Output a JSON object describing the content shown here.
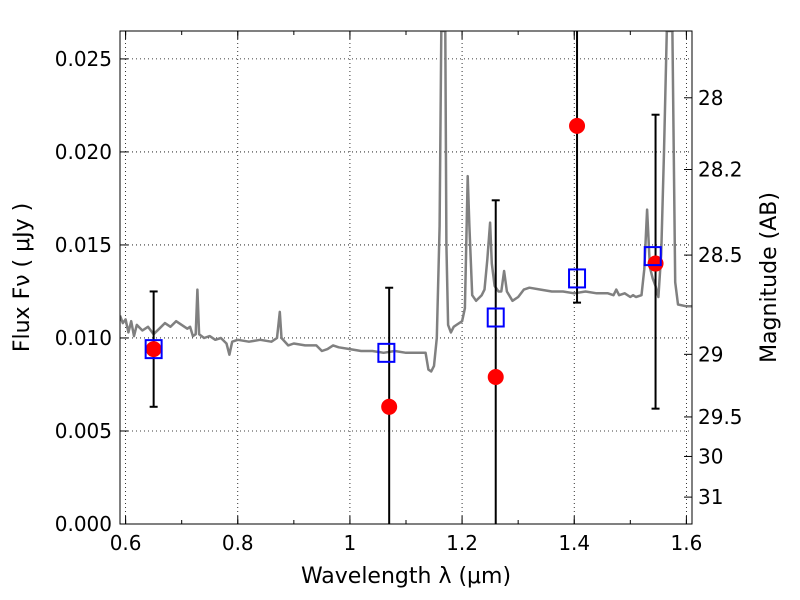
{
  "chart_data": {
    "type": "scatter",
    "xlabel": "Wavelength  λ (μm)",
    "ylabel": "Flux  Fν  ( μJy )",
    "ylabel_right": "Magnitude (AB)",
    "xlim": [
      0.59,
      1.61
    ],
    "ylim": [
      0.0,
      0.0265
    ],
    "grid": true,
    "x_ticks": [
      0.6,
      0.8,
      1.0,
      1.2,
      1.4,
      1.6
    ],
    "x_tick_labels": [
      "0.6",
      "0.8",
      "1",
      "1.2",
      "1.4",
      "1.6"
    ],
    "y_ticks": [
      0.0,
      0.005,
      0.01,
      0.015,
      0.02,
      0.025
    ],
    "y_tick_labels": [
      "0.000",
      "0.005",
      "0.010",
      "0.015",
      "0.020",
      "0.025"
    ],
    "right_ticks": [
      {
        "label": "28",
        "value": 28.0
      },
      {
        "label": "28.2",
        "value": 28.2
      },
      {
        "label": "28.5",
        "value": 28.5
      },
      {
        "label": "29",
        "value": 29.0
      },
      {
        "label": "29.5",
        "value": 29.5
      },
      {
        "label": "30",
        "value": 30.0
      },
      {
        "label": "31",
        "value": 31.0
      }
    ],
    "series": [
      {
        "kind": "model_spectrum",
        "color": "#808080",
        "points": [
          [
            0.59,
            0.0112
          ],
          [
            0.595,
            0.0108
          ],
          [
            0.6,
            0.011
          ],
          [
            0.605,
            0.0103
          ],
          [
            0.61,
            0.0109
          ],
          [
            0.615,
            0.0101
          ],
          [
            0.62,
            0.0107
          ],
          [
            0.63,
            0.0104
          ],
          [
            0.64,
            0.0106
          ],
          [
            0.65,
            0.0102
          ],
          [
            0.66,
            0.0105
          ],
          [
            0.67,
            0.0108
          ],
          [
            0.68,
            0.0106
          ],
          [
            0.69,
            0.0109
          ],
          [
            0.7,
            0.0107
          ],
          [
            0.71,
            0.0105
          ],
          [
            0.715,
            0.0106
          ],
          [
            0.72,
            0.0101
          ],
          [
            0.725,
            0.0102
          ],
          [
            0.728,
            0.0126
          ],
          [
            0.731,
            0.0102
          ],
          [
            0.74,
            0.01
          ],
          [
            0.75,
            0.0101
          ],
          [
            0.76,
            0.0099
          ],
          [
            0.77,
            0.01
          ],
          [
            0.78,
            0.0097
          ],
          [
            0.785,
            0.0091
          ],
          [
            0.79,
            0.0098
          ],
          [
            0.8,
            0.0099
          ],
          [
            0.82,
            0.0098
          ],
          [
            0.84,
            0.0099
          ],
          [
            0.86,
            0.0098
          ],
          [
            0.87,
            0.01
          ],
          [
            0.875,
            0.0114
          ],
          [
            0.878,
            0.01
          ],
          [
            0.89,
            0.0096
          ],
          [
            0.9,
            0.0097
          ],
          [
            0.92,
            0.0096
          ],
          [
            0.94,
            0.0096
          ],
          [
            0.95,
            0.0093
          ],
          [
            0.96,
            0.0094
          ],
          [
            0.97,
            0.0096
          ],
          [
            0.98,
            0.0095
          ],
          [
            1.0,
            0.0094
          ],
          [
            1.02,
            0.0093
          ],
          [
            1.04,
            0.0093
          ],
          [
            1.06,
            0.0092
          ],
          [
            1.08,
            0.0093
          ],
          [
            1.1,
            0.0092
          ],
          [
            1.12,
            0.0092
          ],
          [
            1.135,
            0.0092
          ],
          [
            1.14,
            0.0083
          ],
          [
            1.145,
            0.0082
          ],
          [
            1.15,
            0.0085
          ],
          [
            1.155,
            0.01
          ],
          [
            1.16,
            0.016
          ],
          [
            1.163,
            0.0265
          ],
          [
            1.17,
            0.0265
          ],
          [
            1.172,
            0.015
          ],
          [
            1.175,
            0.0107
          ],
          [
            1.18,
            0.0103
          ],
          [
            1.185,
            0.0106
          ],
          [
            1.19,
            0.0107
          ],
          [
            1.2,
            0.0109
          ],
          [
            1.205,
            0.0116
          ],
          [
            1.21,
            0.0187
          ],
          [
            1.213,
            0.016
          ],
          [
            1.218,
            0.0123
          ],
          [
            1.225,
            0.012
          ],
          [
            1.235,
            0.0123
          ],
          [
            1.24,
            0.0126
          ],
          [
            1.245,
            0.0142
          ],
          [
            1.25,
            0.0162
          ],
          [
            1.253,
            0.014
          ],
          [
            1.258,
            0.0128
          ],
          [
            1.265,
            0.0125
          ],
          [
            1.27,
            0.0125
          ],
          [
            1.275,
            0.0136
          ],
          [
            1.28,
            0.0125
          ],
          [
            1.29,
            0.012
          ],
          [
            1.3,
            0.0122
          ],
          [
            1.31,
            0.0126
          ],
          [
            1.32,
            0.0127
          ],
          [
            1.34,
            0.0126
          ],
          [
            1.36,
            0.0125
          ],
          [
            1.38,
            0.0125
          ],
          [
            1.4,
            0.0124
          ],
          [
            1.42,
            0.0125
          ],
          [
            1.44,
            0.0124
          ],
          [
            1.46,
            0.0124
          ],
          [
            1.47,
            0.0123
          ],
          [
            1.475,
            0.0126
          ],
          [
            1.48,
            0.0123
          ],
          [
            1.49,
            0.0124
          ],
          [
            1.5,
            0.0122
          ],
          [
            1.505,
            0.0123
          ],
          [
            1.51,
            0.0122
          ],
          [
            1.52,
            0.0123
          ],
          [
            1.525,
            0.0137
          ],
          [
            1.53,
            0.0169
          ],
          [
            1.535,
            0.0138
          ],
          [
            1.54,
            0.0132
          ],
          [
            1.545,
            0.0128
          ],
          [
            1.55,
            0.0122
          ],
          [
            1.555,
            0.0145
          ],
          [
            1.56,
            0.02
          ],
          [
            1.565,
            0.0265
          ],
          [
            1.575,
            0.0265
          ],
          [
            1.58,
            0.013
          ],
          [
            1.585,
            0.0118
          ],
          [
            1.6,
            0.0117
          ],
          [
            1.61,
            0.0117
          ]
        ]
      },
      {
        "kind": "model_photometry",
        "marker": "open_square",
        "color": "#0000ff",
        "x": [
          0.65,
          1.065,
          1.26,
          1.405,
          1.54
        ],
        "y": [
          0.0094,
          0.0092,
          0.0111,
          0.0132,
          0.0144
        ]
      },
      {
        "kind": "observed_photometry",
        "marker": "filled_circle",
        "color": "#ff0000",
        "x": [
          0.65,
          1.07,
          1.26,
          1.405,
          1.545
        ],
        "y": [
          0.0094,
          0.0063,
          0.0079,
          0.0214,
          0.014
        ],
        "yerr_low": [
          0.0063,
          0.0,
          0.0,
          0.0119,
          0.0062
        ],
        "yerr_high": [
          0.0125,
          0.0127,
          0.0174,
          0.0265,
          0.022
        ]
      }
    ]
  }
}
